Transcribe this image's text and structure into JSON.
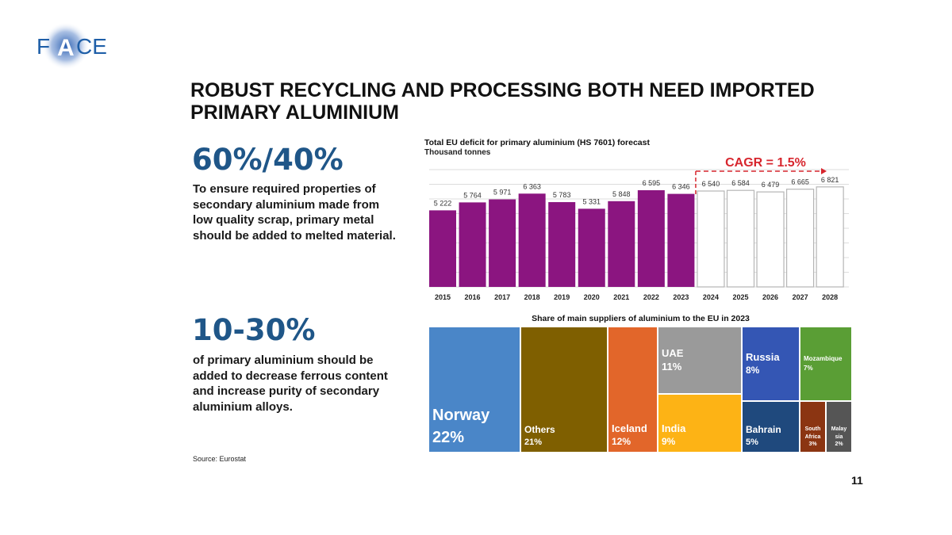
{
  "logo": {
    "text": "FACE",
    "color": "#1f5fa8"
  },
  "title": "ROBUST RECYCLING AND PROCESSING BOTH NEED IMPORTED PRIMARY ALUMINIUM",
  "stat1": {
    "value": "60%/40%",
    "text": "To ensure required properties of secondary aluminium made from low quality scrap, primary metal should be added to melted material."
  },
  "stat2": {
    "value": "10-30%",
    "text": "of primary aluminium should be added to decrease ferrous content and increase purity of secondary aluminium alloys."
  },
  "source": "Source: Eurostat",
  "page_number": "11",
  "chart_data": [
    {
      "type": "bar",
      "title": "Total EU deficit for primary aluminium (HS 7601) forecast",
      "subtitle": "Thousand tonnes",
      "categories": [
        "2015",
        "2016",
        "2017",
        "2018",
        "2019",
        "2020",
        "2021",
        "2022",
        "2023",
        "2024",
        "2025",
        "2026",
        "2027",
        "2028"
      ],
      "values": [
        5222,
        5764,
        5971,
        6363,
        5783,
        5331,
        5848,
        6595,
        6346,
        6540,
        6584,
        6479,
        6665,
        6821
      ],
      "labels": [
        "5 222",
        "5 764",
        "5 971",
        "6 363",
        "5 783",
        "5 331",
        "5 848",
        "6 595",
        "6 346",
        "6 540",
        "6 584",
        "6 479",
        "6 665",
        "6 821"
      ],
      "forecast_from": "2024",
      "annotation": "CAGR = 1.5%",
      "ylim": [
        0,
        8000
      ],
      "grid": true,
      "colors": {
        "actual": "#8b1580",
        "forecast_fill": "#ffffff",
        "forecast_stroke": "#b5b5b5",
        "annotation": "#d7262e"
      }
    },
    {
      "type": "treemap",
      "title": "Share of main suppliers of aluminium to the EU in 2023",
      "items": [
        {
          "name": "Norway",
          "value": "22%",
          "share": 22,
          "color": "#4a86c8"
        },
        {
          "name": "Others",
          "value": "21%",
          "share": 21,
          "color": "#7f5f00"
        },
        {
          "name": "Iceland",
          "value": "12%",
          "share": 12,
          "color": "#e2662a"
        },
        {
          "name": "UAE",
          "value": "11%",
          "share": 11,
          "color": "#9a9a9a"
        },
        {
          "name": "India",
          "value": "9%",
          "share": 9,
          "color": "#fdb315"
        },
        {
          "name": "Russia",
          "value": "8%",
          "share": 8,
          "color": "#3456b4"
        },
        {
          "name": "Mozambique",
          "value": "7%",
          "share": 7,
          "color": "#5a9e35"
        },
        {
          "name": "Bahrain",
          "value": "5%",
          "share": 5,
          "color": "#1f497d"
        },
        {
          "name": "South Africa",
          "value": "3%",
          "share": 3,
          "color": "#8b3512"
        },
        {
          "name": "Malaysia",
          "value": "2%",
          "share": 2,
          "color": "#555555"
        }
      ]
    }
  ]
}
